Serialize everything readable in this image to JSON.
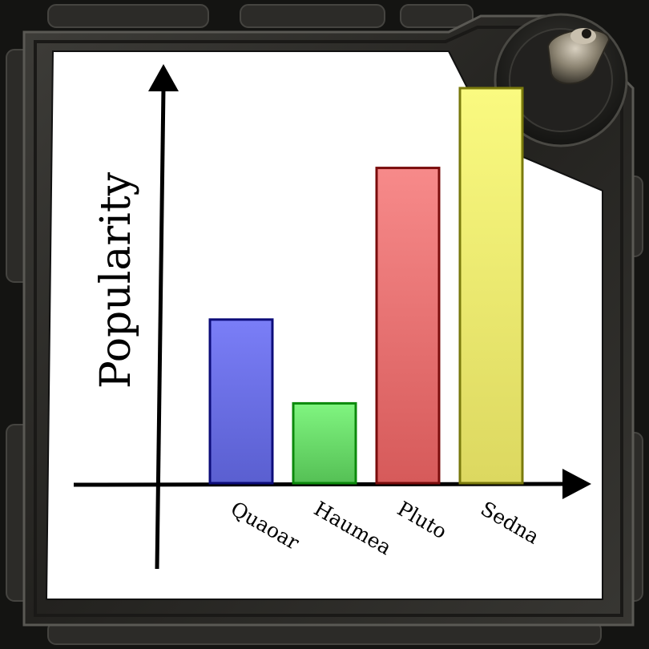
{
  "chart_data": {
    "type": "bar",
    "ylabel": "Popularity",
    "xlabel": "",
    "categories": [
      "Quaoar",
      "Haumea",
      "Pluto",
      "Sedna"
    ],
    "values": [
      41,
      20,
      79,
      99
    ],
    "ylim": [
      0,
      100
    ],
    "grid": false,
    "legend": "none",
    "colors": [
      {
        "fill": "#7a7ef7",
        "fill_end": "#5a5fd0",
        "stroke": "#0c0c7a"
      },
      {
        "fill": "#80f580",
        "fill_end": "#55c055",
        "stroke": "#0c8a0c"
      },
      {
        "fill": "#f78a8a",
        "fill_end": "#d65a5a",
        "stroke": "#7a0c0c"
      },
      {
        "fill": "#fafa80",
        "fill_end": "#dcd860",
        "stroke": "#7a7a0c"
      }
    ]
  },
  "frame": {
    "color": "#2b2a27",
    "highlight": "#4a4944",
    "panel": "#ffffff"
  }
}
